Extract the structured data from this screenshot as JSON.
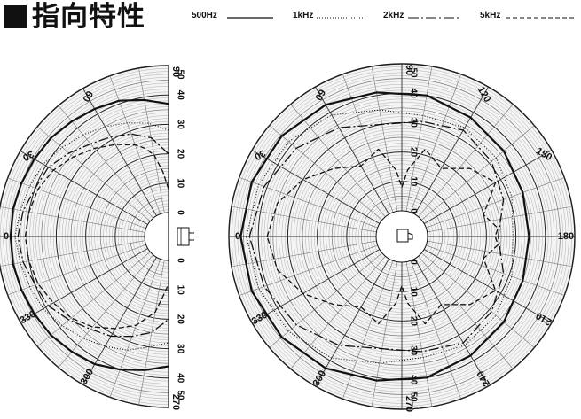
{
  "title": "指向特性",
  "chart_data": {
    "type": "polar",
    "legend": [
      {
        "label": "500Hz",
        "dash": "solid",
        "width": 2.2
      },
      {
        "label": "1kHz",
        "dash": "dotted",
        "width": 1.1
      },
      {
        "label": "2kHz",
        "dash": "dashdot",
        "width": 1.3
      },
      {
        "label": "5kHz",
        "dash": "dashed",
        "width": 1.3
      }
    ],
    "radial_range_db": [
      0,
      50
    ],
    "charts": [
      {
        "kind": "half",
        "angle_labels": [
          "90",
          "60",
          "30",
          "0",
          "330",
          "300",
          "270"
        ],
        "db_labels_top": [
          "50",
          "40",
          "30",
          "20",
          "10",
          "0"
        ],
        "db_labels_bottom": [
          "0",
          "10",
          "20",
          "30",
          "40",
          "50"
        ],
        "series_polar_deg_db": {
          "500Hz": [
            [
              90,
              37
            ],
            [
              80,
              39
            ],
            [
              70,
              41
            ],
            [
              60,
              42
            ],
            [
              50,
              43
            ],
            [
              40,
              44
            ],
            [
              30,
              44.5
            ],
            [
              20,
              45
            ],
            [
              10,
              45.5
            ],
            [
              0,
              45.5
            ],
            [
              -10,
              45.5
            ],
            [
              -20,
              45
            ],
            [
              -30,
              44.5
            ],
            [
              -40,
              44
            ],
            [
              -50,
              43
            ],
            [
              -60,
              42
            ],
            [
              -70,
              40
            ],
            [
              -80,
              38
            ],
            [
              -90,
              36
            ]
          ],
          "1kHz": [
            [
              90,
              28
            ],
            [
              80,
              31
            ],
            [
              70,
              33
            ],
            [
              60,
              35
            ],
            [
              50,
              37
            ],
            [
              40,
              39
            ],
            [
              30,
              41
            ],
            [
              20,
              42
            ],
            [
              10,
              43
            ],
            [
              0,
              44
            ],
            [
              -10,
              43
            ],
            [
              -20,
              42
            ],
            [
              -30,
              41
            ],
            [
              -40,
              39
            ],
            [
              -50,
              37
            ],
            [
              -60,
              35
            ],
            [
              -70,
              33
            ],
            [
              -80,
              30
            ],
            [
              -90,
              28
            ]
          ],
          "2kHz": [
            [
              90,
              20
            ],
            [
              80,
              26
            ],
            [
              70,
              29
            ],
            [
              60,
              31
            ],
            [
              50,
              33
            ],
            [
              40,
              36
            ],
            [
              30,
              39
            ],
            [
              20,
              40
            ],
            [
              10,
              42
            ],
            [
              0,
              43
            ],
            [
              -10,
              42
            ],
            [
              -20,
              40
            ],
            [
              -30,
              39
            ],
            [
              -40,
              36
            ],
            [
              -50,
              33
            ],
            [
              -60,
              31
            ],
            [
              -70,
              28
            ],
            [
              -80,
              25
            ],
            [
              -90,
              20
            ]
          ],
          "5kHz": [
            [
              90,
              8
            ],
            [
              85,
              14
            ],
            [
              80,
              20
            ],
            [
              75,
              23
            ],
            [
              70,
              25
            ],
            [
              60,
              28
            ],
            [
              50,
              31
            ],
            [
              40,
              34
            ],
            [
              30,
              37
            ],
            [
              20,
              39
            ],
            [
              10,
              40
            ],
            [
              0,
              40.5
            ],
            [
              -10,
              40
            ],
            [
              -20,
              39
            ],
            [
              -30,
              37
            ],
            [
              -40,
              35
            ],
            [
              -50,
              32
            ],
            [
              -60,
              28
            ],
            [
              -70,
              24
            ],
            [
              -80,
              18
            ],
            [
              -85,
              12
            ],
            [
              -90,
              8
            ]
          ]
        }
      },
      {
        "kind": "full",
        "angle_labels": [
          "90",
          "60",
          "120",
          "30",
          "150",
          "0",
          "180",
          "330",
          "210",
          "300",
          "240",
          "270"
        ],
        "db_labels_top": [
          "50",
          "40",
          "30",
          "20",
          "10",
          "0"
        ],
        "db_labels_bottom": [
          "0",
          "10",
          "20",
          "30",
          "40",
          "50"
        ],
        "series_polar_deg_db": {
          "500Hz": [
            [
              0,
              46
            ],
            [
              20,
              45.5
            ],
            [
              40,
              44.5
            ],
            [
              60,
              43
            ],
            [
              80,
              41
            ],
            [
              100,
              40
            ],
            [
              120,
              38
            ],
            [
              140,
              36.5
            ],
            [
              160,
              35
            ],
            [
              180,
              34.5
            ],
            [
              200,
              35
            ],
            [
              220,
              36.5
            ],
            [
              240,
              38
            ],
            [
              260,
              40
            ],
            [
              280,
              41
            ],
            [
              300,
              43
            ],
            [
              320,
              44.5
            ],
            [
              340,
              45.5
            ],
            [
              360,
              46
            ]
          ],
          "1kHz": [
            [
              0,
              44
            ],
            [
              20,
              43
            ],
            [
              40,
              41.5
            ],
            [
              60,
              39
            ],
            [
              80,
              35
            ],
            [
              100,
              33
            ],
            [
              120,
              34
            ],
            [
              140,
              33
            ],
            [
              160,
              31
            ],
            [
              180,
              29
            ],
            [
              200,
              31
            ],
            [
              220,
              33
            ],
            [
              240,
              34
            ],
            [
              260,
              33
            ],
            [
              280,
              35
            ],
            [
              300,
              39
            ],
            [
              320,
              41.5
            ],
            [
              340,
              43
            ],
            [
              360,
              44
            ]
          ],
          "2kHz": [
            [
              0,
              43
            ],
            [
              20,
              41
            ],
            [
              40,
              38
            ],
            [
              60,
              34
            ],
            [
              80,
              30
            ],
            [
              100,
              31
            ],
            [
              120,
              33
            ],
            [
              140,
              31
            ],
            [
              160,
              28
            ],
            [
              180,
              24
            ],
            [
              200,
              28
            ],
            [
              220,
              31
            ],
            [
              240,
              33
            ],
            [
              260,
              31
            ],
            [
              280,
              30
            ],
            [
              300,
              34
            ],
            [
              320,
              38
            ],
            [
              340,
              41
            ],
            [
              360,
              43
            ]
          ],
          "5kHz": [
            [
              0,
              37
            ],
            [
              15,
              35
            ],
            [
              30,
              30
            ],
            [
              45,
              24
            ],
            [
              60,
              19
            ],
            [
              75,
              22
            ],
            [
              85,
              14
            ],
            [
              90,
              8
            ],
            [
              95,
              14
            ],
            [
              105,
              22
            ],
            [
              120,
              18
            ],
            [
              135,
              24
            ],
            [
              150,
              28
            ],
            [
              165,
              20
            ],
            [
              175,
              24
            ],
            [
              180,
              23
            ],
            [
              185,
              24
            ],
            [
              195,
              20
            ],
            [
              210,
              28
            ],
            [
              225,
              24
            ],
            [
              240,
              18
            ],
            [
              255,
              22
            ],
            [
              265,
              14
            ],
            [
              270,
              8
            ],
            [
              275,
              14
            ],
            [
              285,
              22
            ],
            [
              300,
              19
            ],
            [
              315,
              24
            ],
            [
              330,
              30
            ],
            [
              345,
              35
            ],
            [
              360,
              37
            ]
          ]
        }
      }
    ]
  }
}
